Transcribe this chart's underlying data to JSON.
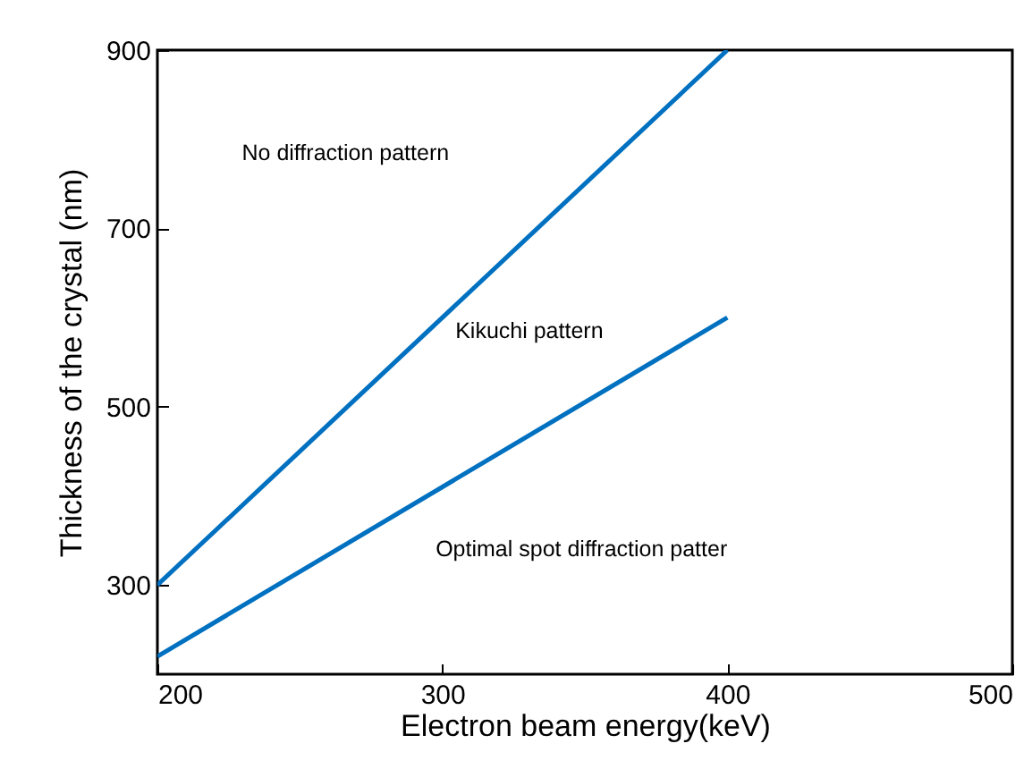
{
  "chart_data": {
    "type": "line",
    "xlabel": "Electron beam energy(keV)",
    "ylabel": "Thickness of the crystal (nm)",
    "xlim": [
      200,
      500
    ],
    "xticks": [
      200,
      300,
      400,
      500
    ],
    "ylim": [
      200,
      900
    ],
    "yticks": [
      300,
      500,
      700,
      900
    ],
    "grid": false,
    "marker": "none",
    "line_style": "solid",
    "x": [
      200,
      400
    ],
    "series": [
      {
        "color": "#0070c0",
        "values": [
          300,
          900
        ]
      },
      {
        "color": "#0070c0",
        "values": [
          220,
          600
        ]
      }
    ],
    "annotations": [
      "No diffraction pattern",
      "Kikuchi pattern",
      "Optimal spot diffraction patter"
    ]
  }
}
